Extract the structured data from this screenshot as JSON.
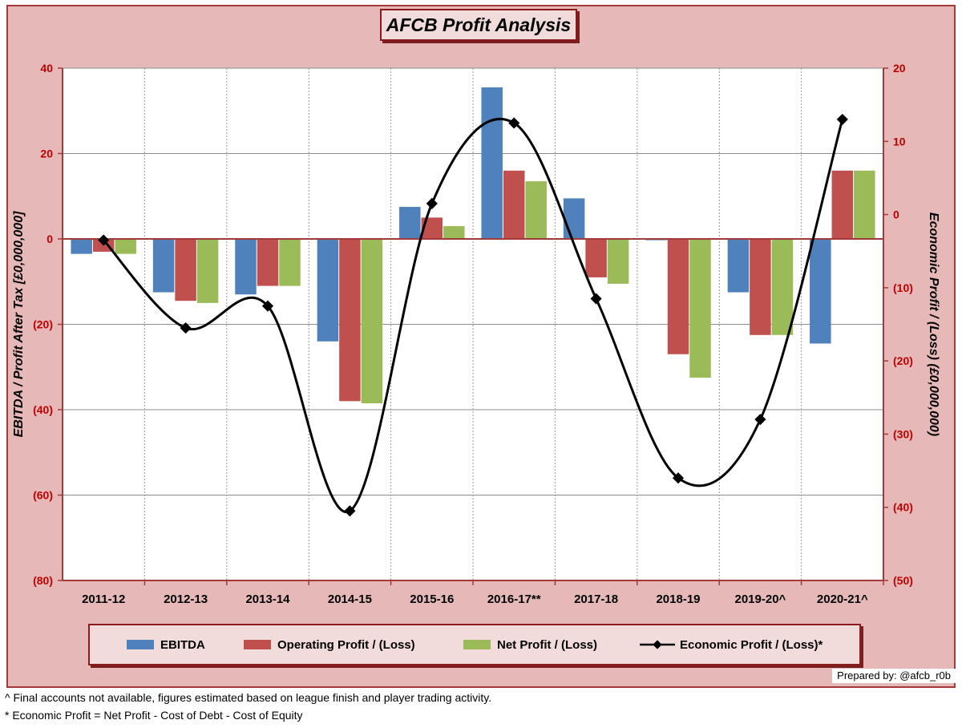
{
  "title": "AFCB Profit Analysis",
  "prepared_by": "Prepared by: @afcb_r0b",
  "footnotes": [
    "^ Final  accounts not available, figures estimated based on league finish and player trading activity.",
    "* Economic Profit = Net Profit - Cost of Debt - Cost of Equity"
  ],
  "colors": {
    "ebitda": "#4f81bd",
    "operating": "#c0504d",
    "net": "#9bbb59",
    "economic": "#000000",
    "left_axis_text": "#c00000",
    "right_axis_text": "#c00000",
    "axis_line": "#a33a3a"
  },
  "chart_data": {
    "type": "bar",
    "title": "AFCB Profit Analysis",
    "categories": [
      "2011-12",
      "2012-13",
      "2013-14",
      "2014-15",
      "2015-16",
      "2016-17**",
      "2017-18",
      "2018-19",
      "2019-20^",
      "2020-21^"
    ],
    "ylabel": "EBITDA / Profit After Tax [£0,000,000]",
    "y2label": "Economic Profit / (Loss) (£0,000,000)",
    "ylim": [
      -80,
      40
    ],
    "y2lim": [
      -50,
      20
    ],
    "yticks": [
      "40",
      "20",
      "0",
      "(20)",
      "(40)",
      "(60)",
      "(80)"
    ],
    "y2ticks": [
      "20",
      "10",
      "0",
      "(10)",
      "(20)",
      "(30)",
      "(40)",
      "(50)"
    ],
    "grid": true,
    "legend_position": "bottom",
    "series": [
      {
        "name": "EBITDA",
        "type": "bar",
        "axis": "left",
        "values": [
          -3.5,
          -12.5,
          -13,
          -24,
          7.5,
          35.5,
          9.5,
          -0.3,
          -12.5,
          -24.5
        ]
      },
      {
        "name": "Operating Profit / (Loss)",
        "type": "bar",
        "axis": "left",
        "values": [
          -3,
          -14.5,
          -11,
          -38,
          5,
          16,
          -9,
          -27,
          -22.5,
          16
        ]
      },
      {
        "name": "Net Profit / (Loss)",
        "type": "bar",
        "axis": "left",
        "values": [
          -3.5,
          -15,
          -11,
          -38.5,
          3,
          13.5,
          -10.5,
          -32.5,
          -22.5,
          16
        ]
      },
      {
        "name": "Economic Profit / (Loss)*",
        "type": "line",
        "axis": "right",
        "smooth": true,
        "values": [
          -3.5,
          -15.5,
          -12.5,
          -40.5,
          1.5,
          12.5,
          -11.5,
          -36,
          -28,
          13
        ]
      }
    ]
  }
}
